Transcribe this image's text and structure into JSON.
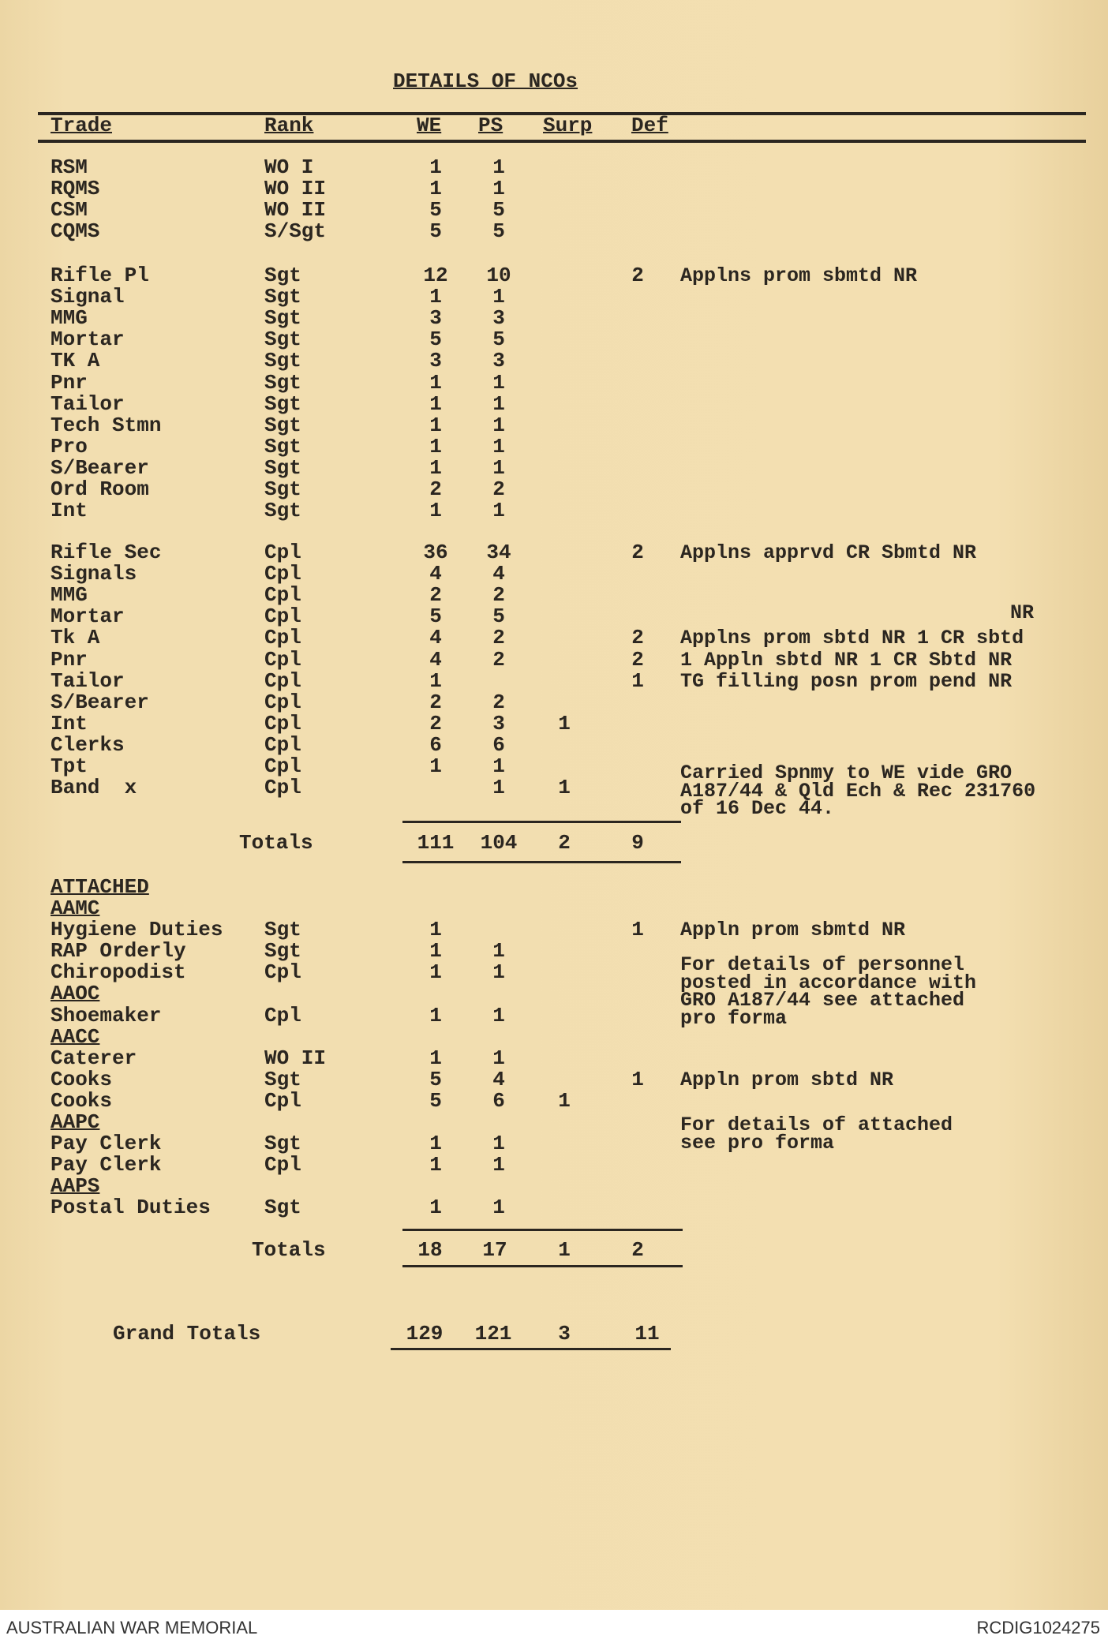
{
  "title": "DETAILS OF NCOs",
  "headers": {
    "trade": "Trade",
    "rank": "Rank",
    "we": "WE",
    "ps": "PS",
    "surp": "Surp",
    "def": "Def"
  },
  "section1": [
    {
      "trade": "RSM",
      "rank": "WO I",
      "we": "1",
      "ps": "1",
      "surp": "",
      "def": ""
    },
    {
      "trade": "RQMS",
      "rank": "WO II",
      "we": "1",
      "ps": "1",
      "surp": "",
      "def": ""
    },
    {
      "trade": "CSM",
      "rank": "WO II",
      "we": "5",
      "ps": "5",
      "surp": "",
      "def": ""
    },
    {
      "trade": "CQMS",
      "rank": "S/Sgt",
      "we": "5",
      "ps": "5",
      "surp": "",
      "def": ""
    }
  ],
  "section2": [
    {
      "trade": "Rifle Pl",
      "rank": "Sgt",
      "we": "12",
      "ps": "10",
      "surp": "",
      "def": "2",
      "remark": "Applns prom sbmtd NR"
    },
    {
      "trade": "Signal",
      "rank": "Sgt",
      "we": "1",
      "ps": "1",
      "surp": "",
      "def": ""
    },
    {
      "trade": "MMG",
      "rank": "Sgt",
      "we": "3",
      "ps": "3",
      "surp": "",
      "def": ""
    },
    {
      "trade": "Mortar",
      "rank": "Sgt",
      "we": "5",
      "ps": "5",
      "surp": "",
      "def": ""
    },
    {
      "trade": "TK A",
      "rank": "Sgt",
      "we": "3",
      "ps": "3",
      "surp": "",
      "def": ""
    },
    {
      "trade": "Pnr",
      "rank": "Sgt",
      "we": "1",
      "ps": "1",
      "surp": "",
      "def": ""
    },
    {
      "trade": "Tailor",
      "rank": "Sgt",
      "we": "1",
      "ps": "1",
      "surp": "",
      "def": ""
    },
    {
      "trade": "Tech Stmn",
      "rank": "Sgt",
      "we": "1",
      "ps": "1",
      "surp": "",
      "def": ""
    },
    {
      "trade": "Pro",
      "rank": "Sgt",
      "we": "1",
      "ps": "1",
      "surp": "",
      "def": ""
    },
    {
      "trade": "S/Bearer",
      "rank": "Sgt",
      "we": "1",
      "ps": "1",
      "surp": "",
      "def": ""
    },
    {
      "trade": "Ord Room",
      "rank": "Sgt",
      "we": "2",
      "ps": "2",
      "surp": "",
      "def": ""
    },
    {
      "trade": "Int",
      "rank": "Sgt",
      "we": "1",
      "ps": "1",
      "surp": "",
      "def": ""
    }
  ],
  "section3": [
    {
      "trade": "Rifle Sec",
      "rank": "Cpl",
      "we": "36",
      "ps": "34",
      "surp": "",
      "def": "2",
      "remark": "Applns apprvd CR Sbmtd NR"
    },
    {
      "trade": "Signals",
      "rank": "Cpl",
      "we": "4",
      "ps": "4",
      "surp": "",
      "def": ""
    },
    {
      "trade": "MMG",
      "rank": "Cpl",
      "we": "2",
      "ps": "2",
      "surp": "",
      "def": ""
    },
    {
      "trade": "Mortar",
      "rank": "Cpl",
      "we": "5",
      "ps": "5",
      "surp": "",
      "def": ""
    },
    {
      "trade": "Tk A",
      "rank": "Cpl",
      "we": "4",
      "ps": "2",
      "surp": "",
      "def": "2",
      "remark": "Applns prom sbtd NR 1 CR sbtd"
    },
    {
      "trade": "Pnr",
      "rank": "Cpl",
      "we": "4",
      "ps": "2",
      "surp": "",
      "def": "2",
      "remark": "1 Appln sbtd NR 1 CR Sbtd NR"
    },
    {
      "trade": "Tailor",
      "rank": "Cpl",
      "we": "1",
      "ps": "",
      "surp": "",
      "def": "1",
      "remark": "TG filling posn prom pend NR"
    },
    {
      "trade": "S/Bearer",
      "rank": "Cpl",
      "we": "2",
      "ps": "2",
      "surp": "",
      "def": ""
    },
    {
      "trade": "Int",
      "rank": "Cpl",
      "we": "2",
      "ps": "3",
      "surp": "1",
      "def": ""
    },
    {
      "trade": "Clerks",
      "rank": "Cpl",
      "we": "6",
      "ps": "6",
      "surp": "",
      "def": ""
    },
    {
      "trade": "Tpt",
      "rank": "Cpl",
      "we": "1",
      "ps": "1",
      "surp": "",
      "def": ""
    },
    {
      "trade": "Band  x",
      "rank": "Cpl",
      "we": "",
      "ps": "1",
      "surp": "1",
      "def": ""
    }
  ],
  "mortar_note": "NR",
  "carried_note": "Carried Spnmy to WE vide GRO\nA187/44 & Qld Ech & Rec 231760\nof 16 Dec 44.",
  "totals1": {
    "label": "Totals",
    "we": "111",
    "ps": "104",
    "surp": "2",
    "def": "9"
  },
  "attached_heading": "ATTACHED",
  "attached": [
    {
      "heading": "AAMC"
    },
    {
      "trade": "Hygiene Duties",
      "rank": "Sgt",
      "we": "1",
      "ps": "",
      "surp": "",
      "def": "1",
      "remark": "Appln prom sbmtd NR"
    },
    {
      "trade": "RAP Orderly",
      "rank": "Sgt",
      "we": "1",
      "ps": "1",
      "surp": "",
      "def": ""
    },
    {
      "trade": "Chiropodist",
      "rank": "Cpl",
      "we": "1",
      "ps": "1",
      "surp": "",
      "def": ""
    },
    {
      "heading": "AAOC"
    },
    {
      "trade": "Shoemaker",
      "rank": "Cpl",
      "we": "1",
      "ps": "1",
      "surp": "",
      "def": ""
    },
    {
      "heading": "AACC"
    },
    {
      "trade": "Caterer",
      "rank": "WO II",
      "we": "1",
      "ps": "1",
      "surp": "",
      "def": ""
    },
    {
      "trade": "Cooks",
      "rank": "Sgt",
      "we": "5",
      "ps": "4",
      "surp": "",
      "def": "1",
      "remark": "Appln prom sbtd NR"
    },
    {
      "trade": "Cooks",
      "rank": "Cpl",
      "we": "5",
      "ps": "6",
      "surp": "1",
      "def": ""
    },
    {
      "heading": "AAPC"
    },
    {
      "trade": "Pay Clerk",
      "rank": "Sgt",
      "we": "1",
      "ps": "1",
      "surp": "",
      "def": ""
    },
    {
      "trade": "Pay Clerk",
      "rank": "Cpl",
      "we": "1",
      "ps": "1",
      "surp": "",
      "def": ""
    },
    {
      "heading": "AAPS"
    },
    {
      "trade": "Postal Duties",
      "rank": "Sgt",
      "we": "1",
      "ps": "1",
      "surp": "",
      "def": ""
    }
  ],
  "personnel_note": "For details of personnel\nposted in accordance with\nGRO A187/44 see attached\npro forma",
  "attached_note": "For details of attached\nsee pro forma",
  "totals2": {
    "label": "Totals",
    "we": "18",
    "ps": "17",
    "surp": "1",
    "def": "2"
  },
  "grand_totals": {
    "label": "Grand Totals",
    "we": "129",
    "ps": "121",
    "surp": "3",
    "def": "11"
  },
  "footer": {
    "left": "AUSTRALIAN WAR MEMORIAL",
    "right": "RCDIG1024275"
  }
}
